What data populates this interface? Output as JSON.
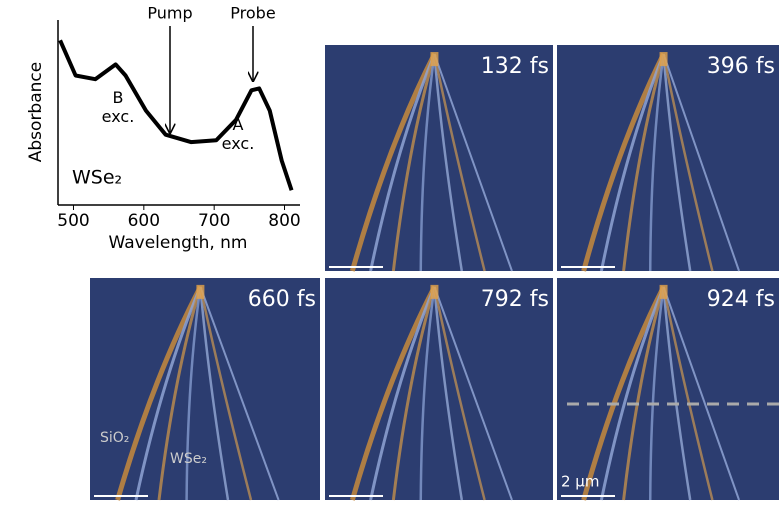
{
  "chart_data": {
    "type": "line",
    "xlabel": "Wavelength, nm",
    "ylabel": "Absorbance",
    "x": [
      481,
      503,
      531,
      560,
      574,
      603,
      631,
      667,
      703,
      731,
      753,
      764,
      779,
      796,
      810
    ],
    "series": [
      {
        "name": "WSe₂",
        "color": "#000000",
        "values": [
          0.89,
          0.7,
          0.68,
          0.76,
          0.7,
          0.51,
          0.38,
          0.34,
          0.35,
          0.46,
          0.62,
          0.63,
          0.51,
          0.24,
          0.08
        ]
      }
    ],
    "xlim": [
      478,
      822
    ],
    "ylim": [
      0,
      1
    ],
    "xticks": [
      500,
      600,
      700,
      800
    ],
    "annotations": {
      "pump": "Pump",
      "probe": "Probe",
      "b_exc": "B\nexc.",
      "a_exc": "A\nexc."
    }
  },
  "panels": [
    {
      "time": "132 fs"
    },
    {
      "time": "396 fs"
    },
    {
      "time": "660 fs"
    },
    {
      "time": "792 fs"
    },
    {
      "time": "924 fs"
    }
  ],
  "panel_labels": {
    "substrate": "SiO₂",
    "flake": "WSe₂",
    "scale": "2 µm"
  }
}
